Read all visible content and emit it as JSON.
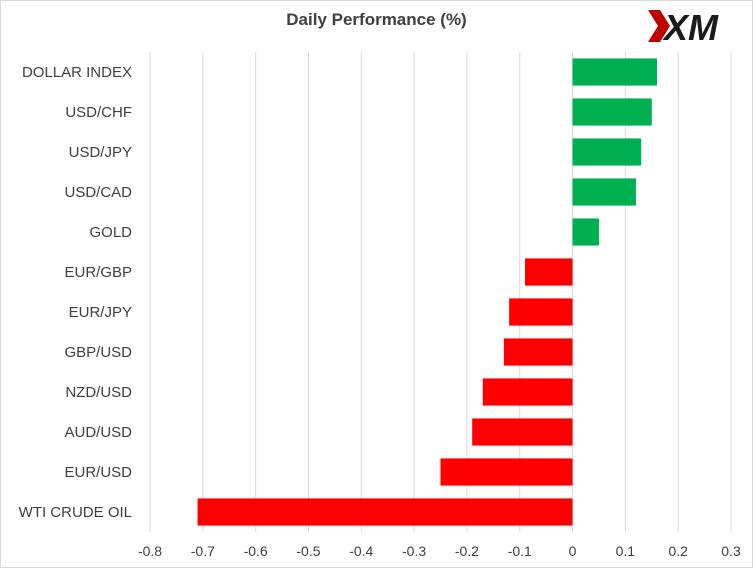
{
  "chart_data": {
    "type": "bar",
    "orientation": "horizontal",
    "title": "Daily Performance (%)",
    "categories": [
      "DOLLAR INDEX",
      "USD/CHF",
      "USD/JPY",
      "USD/CAD",
      "GOLD",
      "EUR/GBP",
      "EUR/JPY",
      "GBP/USD",
      "NZD/USD",
      "AUD/USD",
      "EUR/USD",
      "WTI CRUDE OIL"
    ],
    "values": [
      0.16,
      0.15,
      0.13,
      0.12,
      0.05,
      -0.09,
      -0.12,
      -0.13,
      -0.17,
      -0.19,
      -0.25,
      -0.71
    ],
    "xlim": [
      -0.8,
      0.3
    ],
    "xticks": [
      "-0.8",
      "-0.7",
      "-0.6",
      "-0.5",
      "-0.4",
      "-0.3",
      "-0.2",
      "-0.1",
      "0",
      "0.1",
      "0.2",
      "0.3"
    ],
    "xlabel": "",
    "ylabel": "",
    "grid": "vertical",
    "legend": "none",
    "colors": {
      "positive": "#00b050",
      "negative": "#ff0000",
      "grid": "#d9d9d9",
      "text": "#404040"
    }
  },
  "logo": {
    "text": "XM",
    "icon": "xm-logo-icon",
    "color_primary": "#c00000",
    "color_secondary": "#1a1a1a"
  }
}
